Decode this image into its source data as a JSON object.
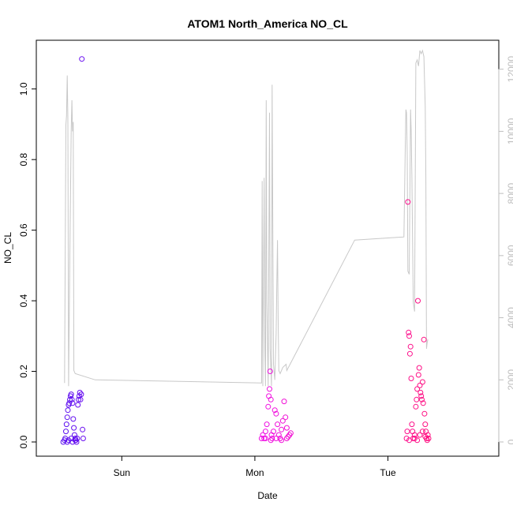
{
  "chart_data": {
    "type": "scatter",
    "title": "ATOM1 North_America NO_CL",
    "xlabel": "Date",
    "ylabel": "NO_CL",
    "xlim": [
      0,
      3.25
    ],
    "ylim": [
      0,
      1.1
    ],
    "y2lim": [
      0,
      12500
    ],
    "xticks": [
      {
        "value": 0.5,
        "label": "Sun"
      },
      {
        "value": 1.5,
        "label": "Mon"
      },
      {
        "value": 2.5,
        "label": "Tue"
      }
    ],
    "yticks": [
      {
        "value": 0.0,
        "label": "0.0"
      },
      {
        "value": 0.2,
        "label": "0.2"
      },
      {
        "value": 0.4,
        "label": "0.4"
      },
      {
        "value": 0.6,
        "label": "0.6"
      },
      {
        "value": 0.8,
        "label": "0.8"
      },
      {
        "value": 1.0,
        "label": "1.0"
      }
    ],
    "y2ticks": [
      {
        "value": 0,
        "label": "0"
      },
      {
        "value": 2000,
        "label": "2000"
      },
      {
        "value": 4000,
        "label": "4000"
      },
      {
        "value": 6000,
        "label": "6000"
      },
      {
        "value": 8000,
        "label": "8000"
      },
      {
        "value": 10000,
        "label": "10000"
      },
      {
        "value": 12000,
        "label": "12000"
      }
    ],
    "colors": {
      "gradient_start": "#5b10f0",
      "gradient_mid": "#ee10ee",
      "gradient_end": "#ff1080",
      "secondary_line": "#c8c8c8",
      "axis2": "#bdbdbd"
    },
    "grid": false,
    "series": [
      {
        "role": "points",
        "axis": "left",
        "points": [
          [
            0.06,
            0.0
          ],
          [
            0.07,
            0.005
          ],
          [
            0.075,
            0.01
          ],
          [
            0.08,
            0.03
          ],
          [
            0.085,
            0.05
          ],
          [
            0.09,
            0.07
          ],
          [
            0.095,
            0.09
          ],
          [
            0.1,
            0.105
          ],
          [
            0.105,
            0.11
          ],
          [
            0.11,
            0.12
          ],
          [
            0.115,
            0.13
          ],
          [
            0.12,
            0.135
          ],
          [
            0.125,
            0.12
          ],
          [
            0.13,
            0.11
          ],
          [
            0.135,
            0.065
          ],
          [
            0.14,
            0.04
          ],
          [
            0.145,
            0.02
          ],
          [
            0.15,
            0.01
          ],
          [
            0.155,
            0.005
          ],
          [
            0.16,
            0.0
          ],
          [
            0.165,
            0.01
          ],
          [
            0.17,
            0.105
          ],
          [
            0.175,
            0.12
          ],
          [
            0.18,
            0.13
          ],
          [
            0.185,
            0.14
          ],
          [
            0.19,
            0.12
          ],
          [
            0.195,
            0.135
          ],
          [
            0.2,
            1.085
          ],
          [
            0.205,
            0.035
          ],
          [
            0.21,
            0.01
          ],
          [
            0.09,
            0.0
          ],
          [
            0.1,
            0.005
          ],
          [
            0.12,
            0.01
          ],
          [
            0.13,
            0.0
          ],
          [
            0.15,
            0.005
          ],
          [
            1.55,
            0.01
          ],
          [
            1.56,
            0.02
          ],
          [
            1.57,
            0.01
          ],
          [
            1.58,
            0.03
          ],
          [
            1.59,
            0.05
          ],
          [
            1.6,
            0.1
          ],
          [
            1.605,
            0.13
          ],
          [
            1.61,
            0.15
          ],
          [
            1.615,
            0.2
          ],
          [
            1.62,
            0.12
          ],
          [
            1.625,
            0.02
          ],
          [
            1.63,
            0.01
          ],
          [
            1.64,
            0.03
          ],
          [
            1.65,
            0.09
          ],
          [
            1.66,
            0.08
          ],
          [
            1.67,
            0.05
          ],
          [
            1.68,
            0.02
          ],
          [
            1.69,
            0.01
          ],
          [
            1.7,
            0.035
          ],
          [
            1.71,
            0.06
          ],
          [
            1.72,
            0.115
          ],
          [
            1.73,
            0.07
          ],
          [
            1.74,
            0.04
          ],
          [
            1.75,
            0.015
          ],
          [
            1.76,
            0.02
          ],
          [
            1.77,
            0.025
          ],
          [
            1.58,
            0.01
          ],
          [
            1.62,
            0.005
          ],
          [
            1.66,
            0.01
          ],
          [
            1.7,
            0.005
          ],
          [
            1.74,
            0.01
          ],
          [
            2.64,
            0.01
          ],
          [
            2.645,
            0.03
          ],
          [
            2.65,
            0.68
          ],
          [
            2.655,
            0.31
          ],
          [
            2.66,
            0.3
          ],
          [
            2.665,
            0.25
          ],
          [
            2.67,
            0.27
          ],
          [
            2.675,
            0.18
          ],
          [
            2.68,
            0.05
          ],
          [
            2.685,
            0.03
          ],
          [
            2.69,
            0.01
          ],
          [
            2.7,
            0.02
          ],
          [
            2.71,
            0.1
          ],
          [
            2.715,
            0.12
          ],
          [
            2.72,
            0.15
          ],
          [
            2.725,
            0.4
          ],
          [
            2.73,
            0.19
          ],
          [
            2.735,
            0.21
          ],
          [
            2.74,
            0.16
          ],
          [
            2.745,
            0.14
          ],
          [
            2.75,
            0.13
          ],
          [
            2.755,
            0.12
          ],
          [
            2.76,
            0.17
          ],
          [
            2.765,
            0.11
          ],
          [
            2.77,
            0.29
          ],
          [
            2.775,
            0.08
          ],
          [
            2.78,
            0.05
          ],
          [
            2.785,
            0.03
          ],
          [
            2.79,
            0.01
          ],
          [
            2.795,
            0.005
          ],
          [
            2.8,
            0.02
          ],
          [
            2.805,
            0.01
          ],
          [
            2.66,
            0.005
          ],
          [
            2.7,
            0.01
          ],
          [
            2.72,
            0.005
          ],
          [
            2.74,
            0.02
          ],
          [
            2.76,
            0.03
          ],
          [
            2.78,
            0.015
          ]
        ]
      },
      {
        "role": "line",
        "axis": "right",
        "points": [
          [
            0.07,
            1900
          ],
          [
            0.08,
            10200
          ],
          [
            0.085,
            10500
          ],
          [
            0.09,
            11800
          ],
          [
            0.095,
            10400
          ],
          [
            0.1,
            1800
          ],
          [
            0.11,
            6000
          ],
          [
            0.12,
            10000
          ],
          [
            0.125,
            11000
          ],
          [
            0.13,
            10000
          ],
          [
            0.135,
            10300
          ],
          [
            0.14,
            2300
          ],
          [
            0.15,
            2200
          ],
          [
            0.3,
            2000
          ],
          [
            1.55,
            1900
          ],
          [
            1.555,
            8400
          ],
          [
            1.56,
            1800
          ],
          [
            1.57,
            8500
          ],
          [
            1.575,
            3000
          ],
          [
            1.58,
            1800
          ],
          [
            1.585,
            11000
          ],
          [
            1.59,
            4500
          ],
          [
            1.6,
            1800
          ],
          [
            1.61,
            10600
          ],
          [
            1.615,
            3000
          ],
          [
            1.625,
            1800
          ],
          [
            1.63,
            11500
          ],
          [
            1.64,
            2500
          ],
          [
            1.65,
            2000
          ],
          [
            1.66,
            3500
          ],
          [
            1.665,
            5000
          ],
          [
            1.67,
            6500
          ],
          [
            1.675,
            4000
          ],
          [
            1.68,
            2300
          ],
          [
            1.69,
            2200
          ],
          [
            1.71,
            2400
          ],
          [
            1.735,
            2500
          ],
          [
            1.74,
            2300
          ],
          [
            2.25,
            6500
          ],
          [
            2.62,
            6600
          ],
          [
            2.63,
            9500
          ],
          [
            2.635,
            10700
          ],
          [
            2.64,
            10600
          ],
          [
            2.645,
            9200
          ],
          [
            2.65,
            5500
          ],
          [
            2.66,
            5400
          ],
          [
            2.67,
            10700
          ],
          [
            2.675,
            10000
          ],
          [
            2.68,
            8500
          ],
          [
            2.69,
            4500
          ],
          [
            2.7,
            4200
          ],
          [
            2.71,
            12200
          ],
          [
            2.72,
            12300
          ],
          [
            2.73,
            12100
          ],
          [
            2.74,
            12600
          ],
          [
            2.75,
            12500
          ],
          [
            2.76,
            12600
          ],
          [
            2.77,
            12400
          ],
          [
            2.78,
            10800
          ],
          [
            2.785,
            8500
          ],
          [
            2.79,
            3000
          ],
          [
            2.795,
            3200
          ],
          [
            2.8,
            3300
          ]
        ]
      }
    ]
  }
}
